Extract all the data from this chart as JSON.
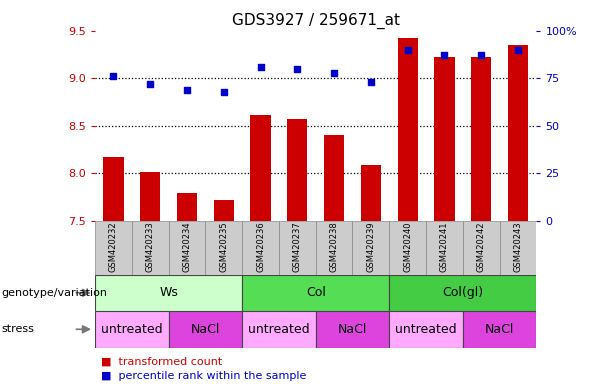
{
  "title": "GDS3927 / 259671_at",
  "samples": [
    "GSM420232",
    "GSM420233",
    "GSM420234",
    "GSM420235",
    "GSM420236",
    "GSM420237",
    "GSM420238",
    "GSM420239",
    "GSM420240",
    "GSM420241",
    "GSM420242",
    "GSM420243"
  ],
  "bar_values": [
    8.17,
    8.01,
    7.79,
    7.72,
    8.61,
    8.57,
    8.4,
    8.09,
    9.42,
    9.22,
    9.22,
    9.35
  ],
  "scatter_values": [
    76,
    72,
    69,
    68,
    81,
    80,
    78,
    73,
    90,
    87,
    87,
    90
  ],
  "ylim_left": [
    7.5,
    9.5
  ],
  "ylim_right": [
    0,
    100
  ],
  "yticks_left": [
    7.5,
    8.0,
    8.5,
    9.0,
    9.5
  ],
  "yticks_right": [
    0,
    25,
    50,
    75,
    100
  ],
  "hlines": [
    8.0,
    8.5,
    9.0
  ],
  "bar_color": "#cc0000",
  "scatter_color": "#0000cc",
  "bar_bottom": 7.5,
  "genotype_groups": [
    {
      "label": "Ws",
      "start": 0,
      "end": 4,
      "color": "#ccffcc"
    },
    {
      "label": "Col",
      "start": 4,
      "end": 8,
      "color": "#55dd55"
    },
    {
      "label": "Col(gl)",
      "start": 8,
      "end": 12,
      "color": "#44cc44"
    }
  ],
  "stress_groups": [
    {
      "label": "untreated",
      "start": 0,
      "end": 2,
      "color": "#ffaaff"
    },
    {
      "label": "NaCl",
      "start": 2,
      "end": 4,
      "color": "#dd44dd"
    },
    {
      "label": "untreated",
      "start": 4,
      "end": 6,
      "color": "#ffaaff"
    },
    {
      "label": "NaCl",
      "start": 6,
      "end": 8,
      "color": "#dd44dd"
    },
    {
      "label": "untreated",
      "start": 8,
      "end": 10,
      "color": "#ffaaff"
    },
    {
      "label": "NaCl",
      "start": 10,
      "end": 12,
      "color": "#dd44dd"
    }
  ],
  "legend_items": [
    {
      "label": "transformed count",
      "color": "#cc0000"
    },
    {
      "label": "percentile rank within the sample",
      "color": "#0000cc"
    }
  ],
  "genotype_label": "genotype/variation",
  "stress_label": "stress",
  "tick_color_left": "#cc0000",
  "tick_color_right": "#0000cc",
  "sample_bg": "#cccccc",
  "title_fontsize": 11,
  "tick_fontsize": 8,
  "sample_fontsize": 6,
  "row_fontsize": 9,
  "legend_fontsize": 8
}
